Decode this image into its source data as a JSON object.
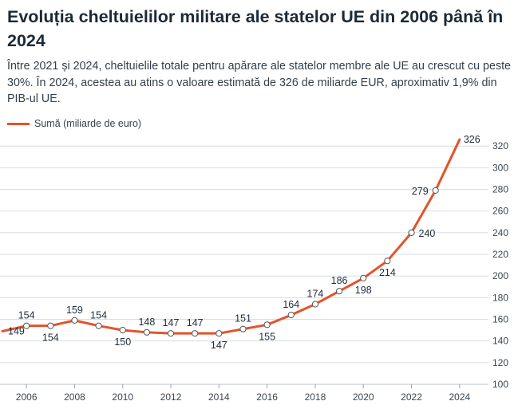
{
  "header": {
    "title": "Evoluția cheltuielilor militare ale statelor UE din 2006 până în 2024",
    "subtitle": "Între 2021 și 2024, cheltuielile totale pentru apărare ale statelor membre ale UE au crescut cu peste 30%. În 2024, acestea au atins o valoare estimată de 326 de miliarde EUR, aproximativ 1,9% din PIB-ul UE."
  },
  "colors": {
    "line": "#e5522b",
    "grid": "#d8dde2",
    "point_fill": "#ffffff",
    "point_stroke": "#555555"
  },
  "chart_data": {
    "type": "line",
    "title": "Evoluția cheltuielilor militare ale statelor UE din 2006 până în 2024",
    "x": [
      2005,
      2006,
      2007,
      2008,
      2009,
      2010,
      2011,
      2012,
      2013,
      2014,
      2015,
      2016,
      2017,
      2018,
      2019,
      2020,
      2021,
      2022,
      2023,
      2024
    ],
    "series": [
      {
        "name": "Sumă (miliarde de euro)",
        "values": [
          149,
          154,
          154,
          159,
          154,
          150,
          148,
          147,
          147,
          147,
          151,
          155,
          164,
          174,
          186,
          198,
          214,
          240,
          279,
          326
        ]
      }
    ],
    "labels": [
      "149",
      "154",
      "154",
      "159",
      "154",
      "150",
      "148",
      "147",
      "147",
      "147",
      "151",
      "155",
      "164",
      "174",
      "186",
      "198",
      "214",
      "240",
      "279",
      "326"
    ],
    "xticks": [
      2006,
      2008,
      2010,
      2012,
      2014,
      2016,
      2018,
      2020,
      2022,
      2024
    ],
    "yticks": [
      100,
      120,
      140,
      160,
      180,
      200,
      220,
      240,
      260,
      280,
      300,
      320
    ],
    "xlim": [
      2004.9,
      2025.2
    ],
    "ylim": [
      100,
      329
    ],
    "grid": "horizontal",
    "legend": "top-left",
    "yaxis_side": "right"
  }
}
